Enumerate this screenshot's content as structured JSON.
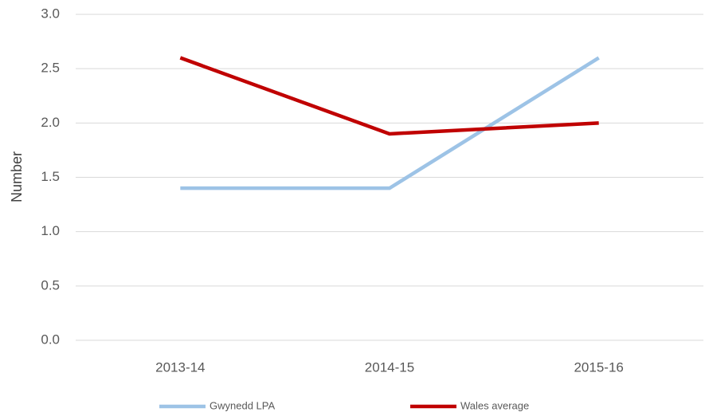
{
  "chart_data": {
    "type": "line",
    "y_label": "Number",
    "categories": [
      "2013-14",
      "2014-15",
      "2015-16"
    ],
    "series": [
      {
        "name": "Gwynedd LPA",
        "color": "#9dc3e6",
        "values": [
          1.4,
          1.4,
          2.6
        ]
      },
      {
        "name": "Wales average",
        "color": "#c00000",
        "values": [
          2.6,
          1.9,
          2.0
        ]
      }
    ],
    "ylim": [
      0,
      3
    ],
    "yticks": [
      {
        "value": 0,
        "label": "0.0"
      },
      0.5,
      {
        "value": 1,
        "label": "1.0"
      },
      1.5,
      {
        "value": 2,
        "label": "2.0"
      },
      2.5,
      {
        "value": 3,
        "label": "3.0"
      }
    ],
    "grid": true,
    "legend": "bottom"
  }
}
